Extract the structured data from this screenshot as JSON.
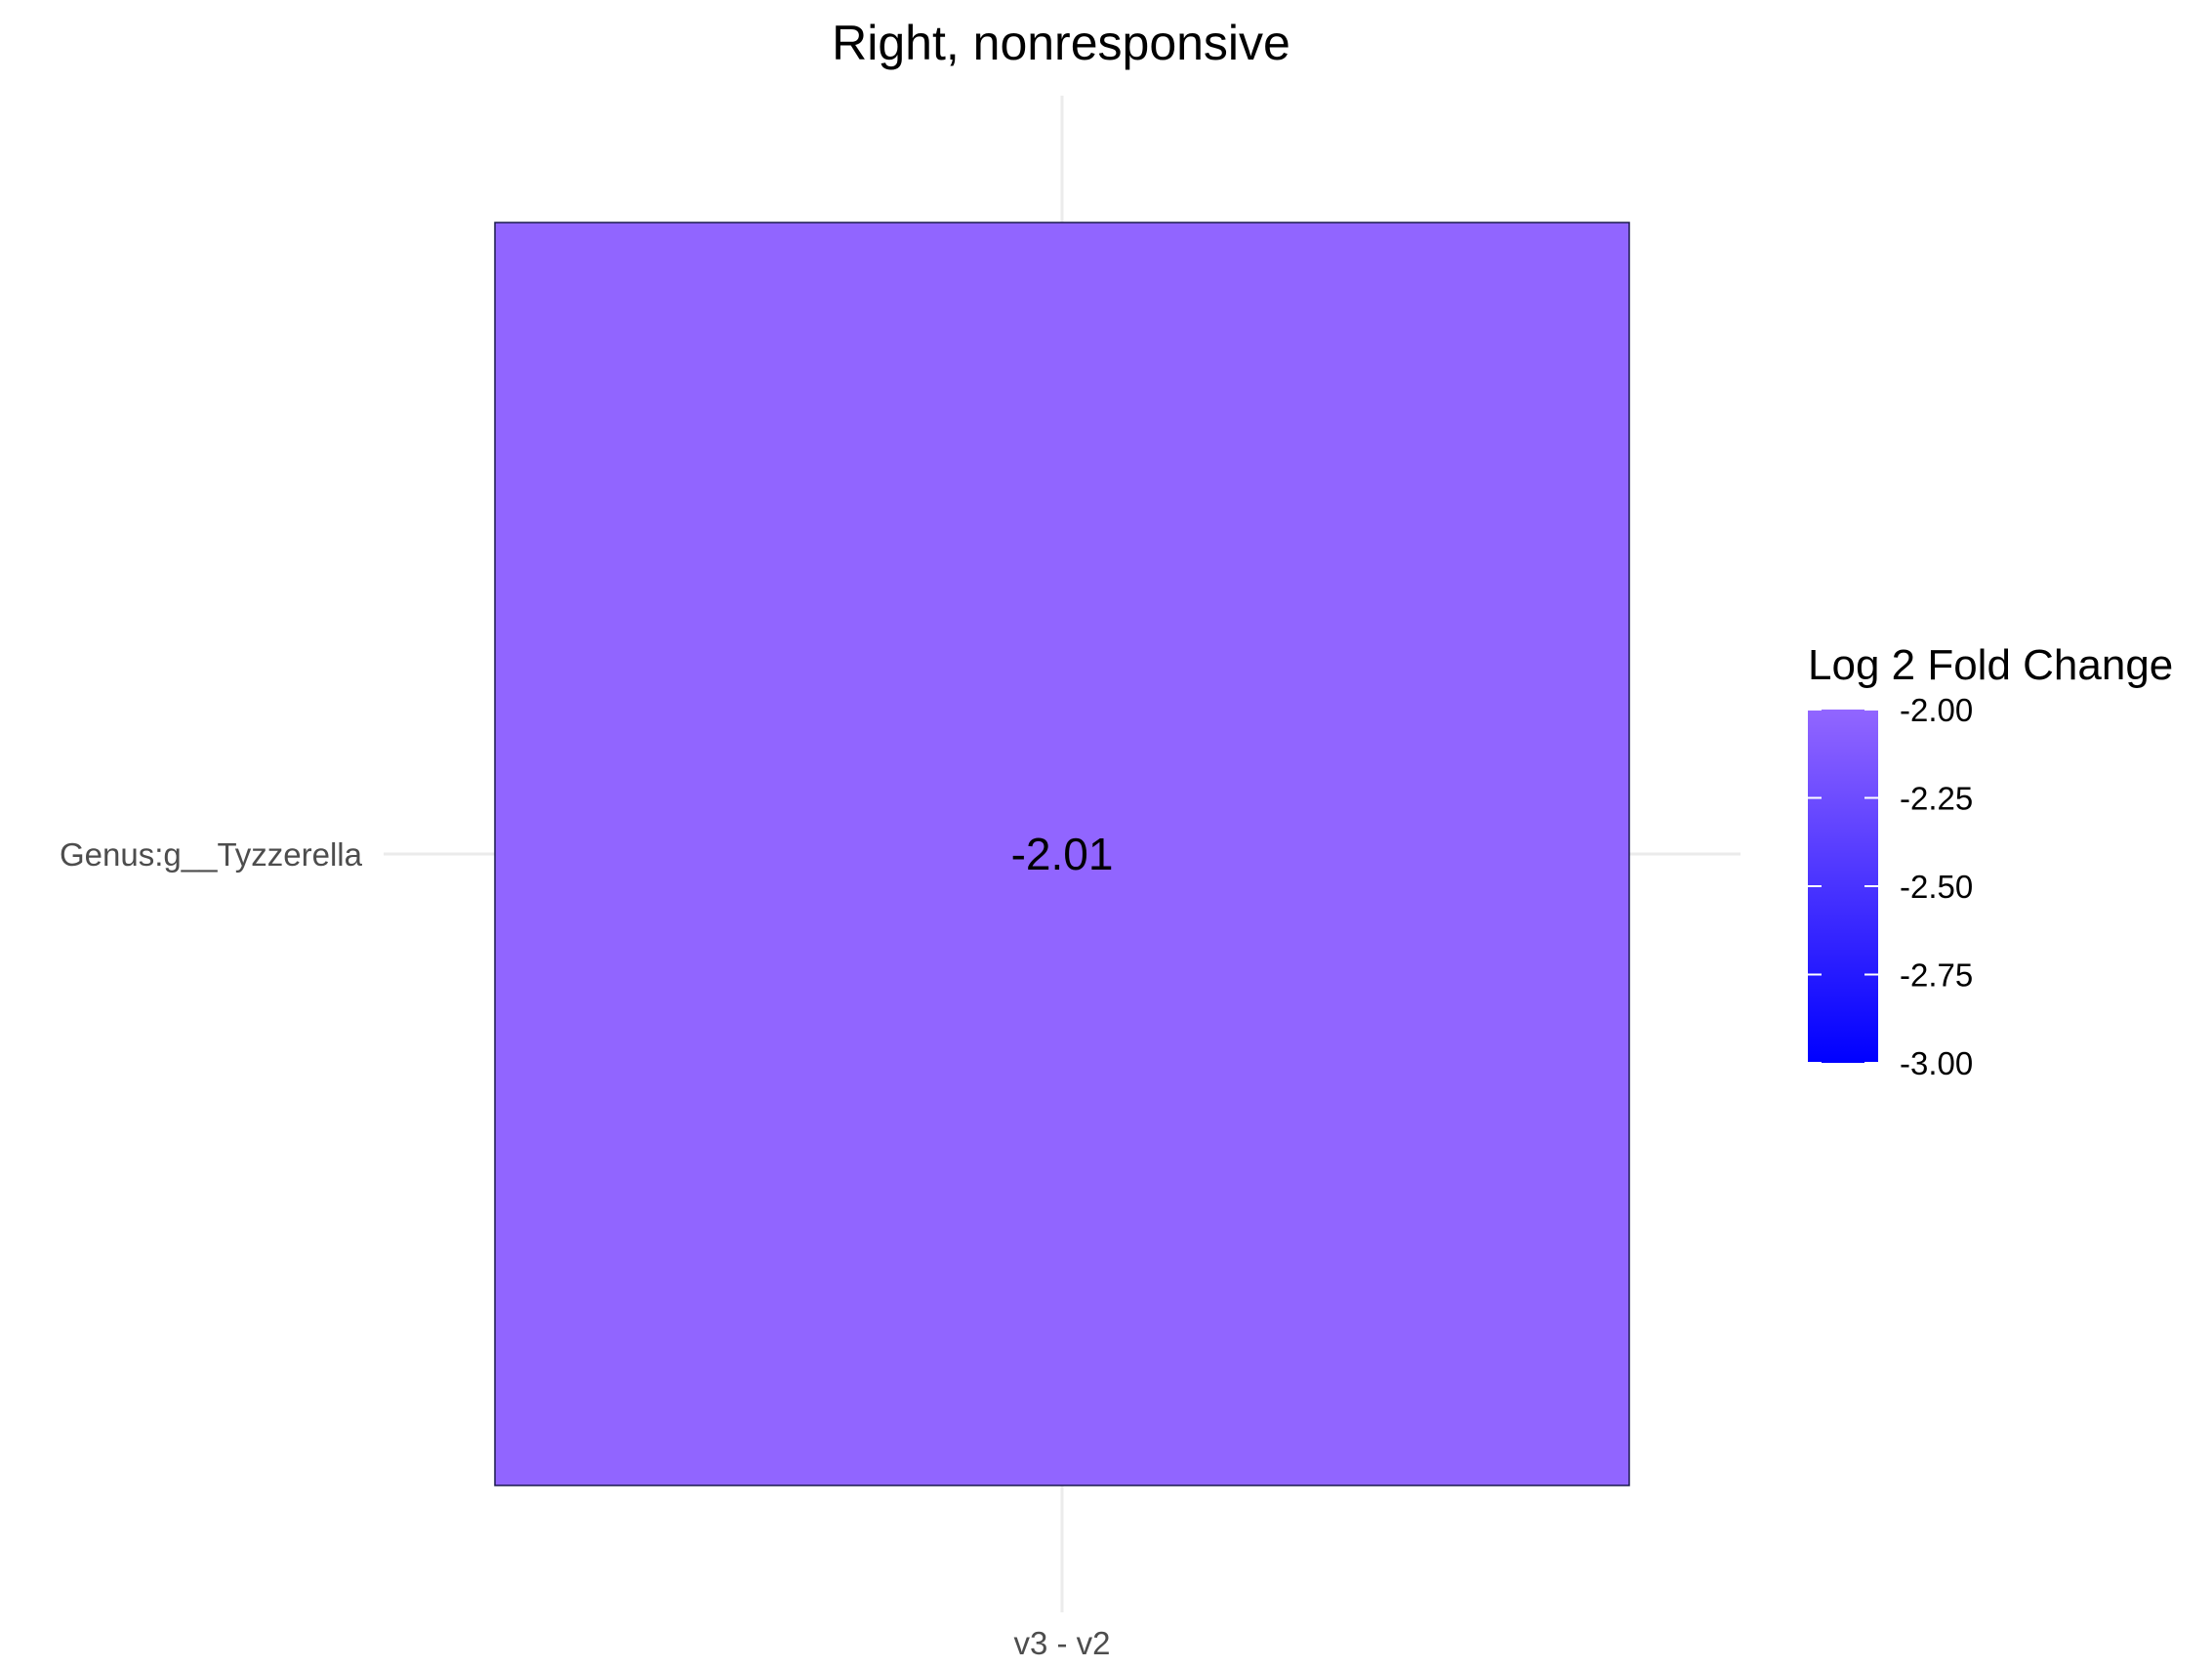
{
  "chart_data": {
    "type": "heatmap",
    "title": "Right, nonresponsive",
    "xlabel": "",
    "ylabel": "",
    "x_categories": [
      "v3 - v2"
    ],
    "y_categories": [
      "Genus:g__Tyzzerella"
    ],
    "cells": [
      {
        "x": "v3 - v2",
        "y": "Genus:g__Tyzzerella",
        "value": -2.01,
        "label": "-2.01"
      }
    ],
    "legend": {
      "title": "Log 2 Fold Change",
      "limits": [
        -3.0,
        -2.0
      ],
      "low_color": "#0000ff",
      "high_color": "#9266ff",
      "ticks": [
        {
          "value": -2.0,
          "label": "-2.00"
        },
        {
          "value": -2.25,
          "label": "-2.25"
        },
        {
          "value": -2.5,
          "label": "-2.50"
        },
        {
          "value": -2.75,
          "label": "-2.75"
        },
        {
          "value": -3.0,
          "label": "-3.00"
        }
      ]
    },
    "grid": true,
    "cell_border_color": "#1a1a4d",
    "grid_color": "#ebebeb"
  }
}
